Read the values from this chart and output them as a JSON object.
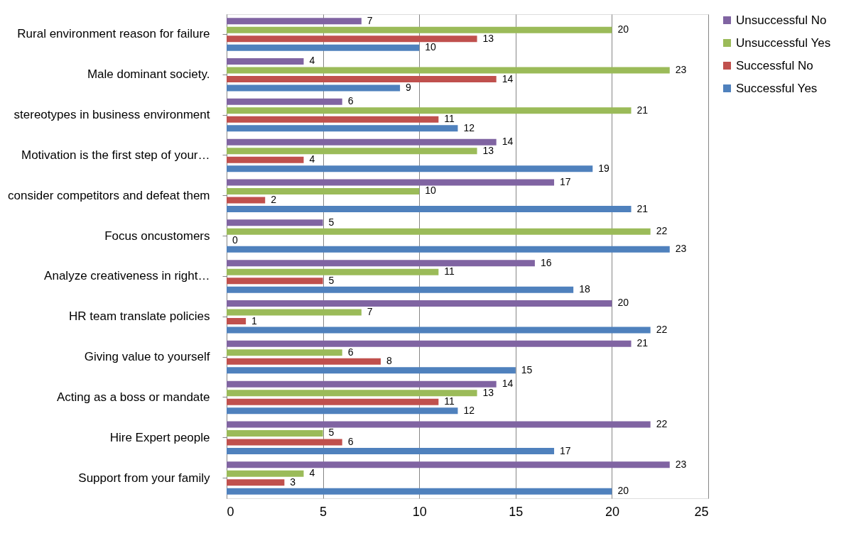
{
  "chart_data": {
    "type": "bar",
    "orientation": "horizontal",
    "categories": [
      "Rural environment reason for failure",
      "Male dominant society.",
      "stereotypes in business environment",
      "Motivation is the first step of your…",
      "consider competitors and defeat them",
      "Focus oncustomers",
      "Analyze creativeness in right…",
      "HR team translate policies",
      "Giving value to yourself",
      "Acting as a boss or mandate",
      "Hire Expert people",
      "Support from your family"
    ],
    "series": [
      {
        "name": "Successful Yes",
        "color": "#4f81bd",
        "values": [
          10,
          9,
          12,
          19,
          21,
          23,
          18,
          22,
          15,
          12,
          17,
          20
        ]
      },
      {
        "name": "Successful No",
        "color": "#c0504d",
        "values": [
          13,
          14,
          11,
          4,
          2,
          0,
          5,
          1,
          8,
          11,
          6,
          3
        ]
      },
      {
        "name": "Unsuccessful Yes",
        "color": "#9bbb59",
        "values": [
          20,
          23,
          21,
          13,
          10,
          22,
          11,
          7,
          6,
          13,
          5,
          4
        ]
      },
      {
        "name": "Unsuccessful No",
        "color": "#8064a2",
        "values": [
          7,
          4,
          6,
          14,
          17,
          5,
          16,
          20,
          21,
          14,
          22,
          23
        ]
      }
    ],
    "xlim": [
      0,
      25
    ],
    "xticks": [
      0,
      5,
      10,
      15,
      20,
      25
    ],
    "grid": "x",
    "legend": "right",
    "data_labels": true
  }
}
